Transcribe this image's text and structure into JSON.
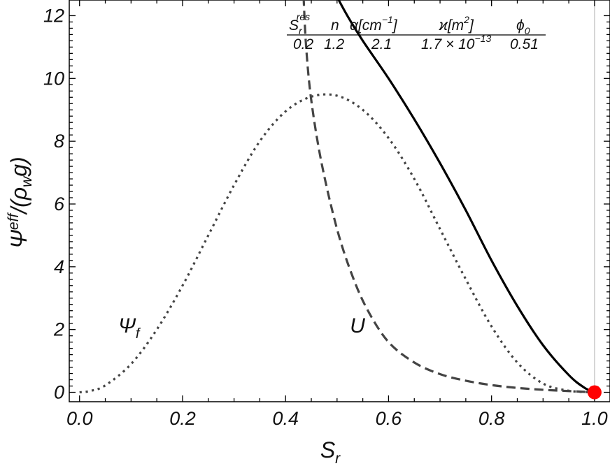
{
  "chart_data": {
    "type": "line",
    "xlabel": "S",
    "xlabel_sub": "r",
    "ylabel_base": "Ψ",
    "ylabel_sup": "eff",
    "ylabel_tail": "/(ρ",
    "ylabel_sub": "w",
    "ylabel_end": "g)",
    "xlim": [
      -0.02,
      1.03
    ],
    "ylim": [
      -0.3,
      12.5
    ],
    "x_ticks": [
      0.0,
      0.2,
      0.4,
      0.6,
      0.8,
      1.0
    ],
    "x_tick_labels": [
      "0.0",
      "0.2",
      "0.4",
      "0.6",
      "0.8",
      "1.0"
    ],
    "y_ticks": [
      0,
      2,
      4,
      6,
      8,
      10,
      12
    ],
    "y_tick_labels": [
      "0",
      "2",
      "4",
      "6",
      "8",
      "10",
      "12"
    ],
    "vertical_line_x": 1.0,
    "marker": {
      "x": 1.0,
      "y": 0.0,
      "color": "#ff0000"
    },
    "series": [
      {
        "name": "Ψ",
        "name_sub": "f",
        "style": "dotted",
        "color": "#444444",
        "label_pos": [
          0.075,
          1.9
        ],
        "x": [
          0.0,
          0.02,
          0.05,
          0.1,
          0.15,
          0.2,
          0.25,
          0.3,
          0.35,
          0.4,
          0.45,
          0.5,
          0.55,
          0.6,
          0.65,
          0.7,
          0.75,
          0.8,
          0.85,
          0.9,
          0.95,
          1.0
        ],
        "y": [
          0.0,
          0.04,
          0.22,
          0.9,
          2.0,
          3.4,
          5.0,
          6.6,
          8.0,
          8.95,
          9.42,
          9.45,
          9.0,
          8.1,
          6.8,
          5.2,
          3.6,
          2.1,
          0.95,
          0.28,
          0.05,
          0.0
        ]
      },
      {
        "name": "U",
        "style": "dashed",
        "color": "#444444",
        "label_pos": [
          0.525,
          1.9
        ],
        "x": [
          0.435,
          0.44,
          0.45,
          0.47,
          0.5,
          0.53,
          0.56,
          0.6,
          0.65,
          0.7,
          0.75,
          0.8,
          0.85,
          0.9,
          0.95,
          1.0
        ],
        "y": [
          12.6,
          11.0,
          9.3,
          7.3,
          5.2,
          3.7,
          2.6,
          1.6,
          0.95,
          0.58,
          0.37,
          0.23,
          0.14,
          0.08,
          0.04,
          0.0
        ]
      },
      {
        "name": "",
        "style": "solid",
        "color": "#000000",
        "x": [
          0.5,
          0.52,
          0.55,
          0.6,
          0.65,
          0.7,
          0.75,
          0.8,
          0.85,
          0.9,
          0.95,
          0.98,
          1.0
        ],
        "y": [
          12.6,
          12.0,
          11.2,
          10.0,
          8.7,
          7.3,
          5.8,
          4.2,
          2.75,
          1.5,
          0.55,
          0.15,
          0.0
        ]
      }
    ],
    "table": {
      "headers": [
        "S",
        "n",
        "α[cm",
        "ϰ[m",
        "ϕ"
      ],
      "header_parts": {
        "s_sub": "r",
        "s_sup": "res",
        "alpha_sup": "−1",
        "alpha_close": "]",
        "kappa_sup": "2",
        "kappa_close": "]",
        "phi_sub": "0"
      },
      "values": [
        "0.2",
        "1.2",
        "2.1",
        "1.7 × 10",
        "0.51"
      ],
      "kappa_exp": "−13"
    }
  }
}
